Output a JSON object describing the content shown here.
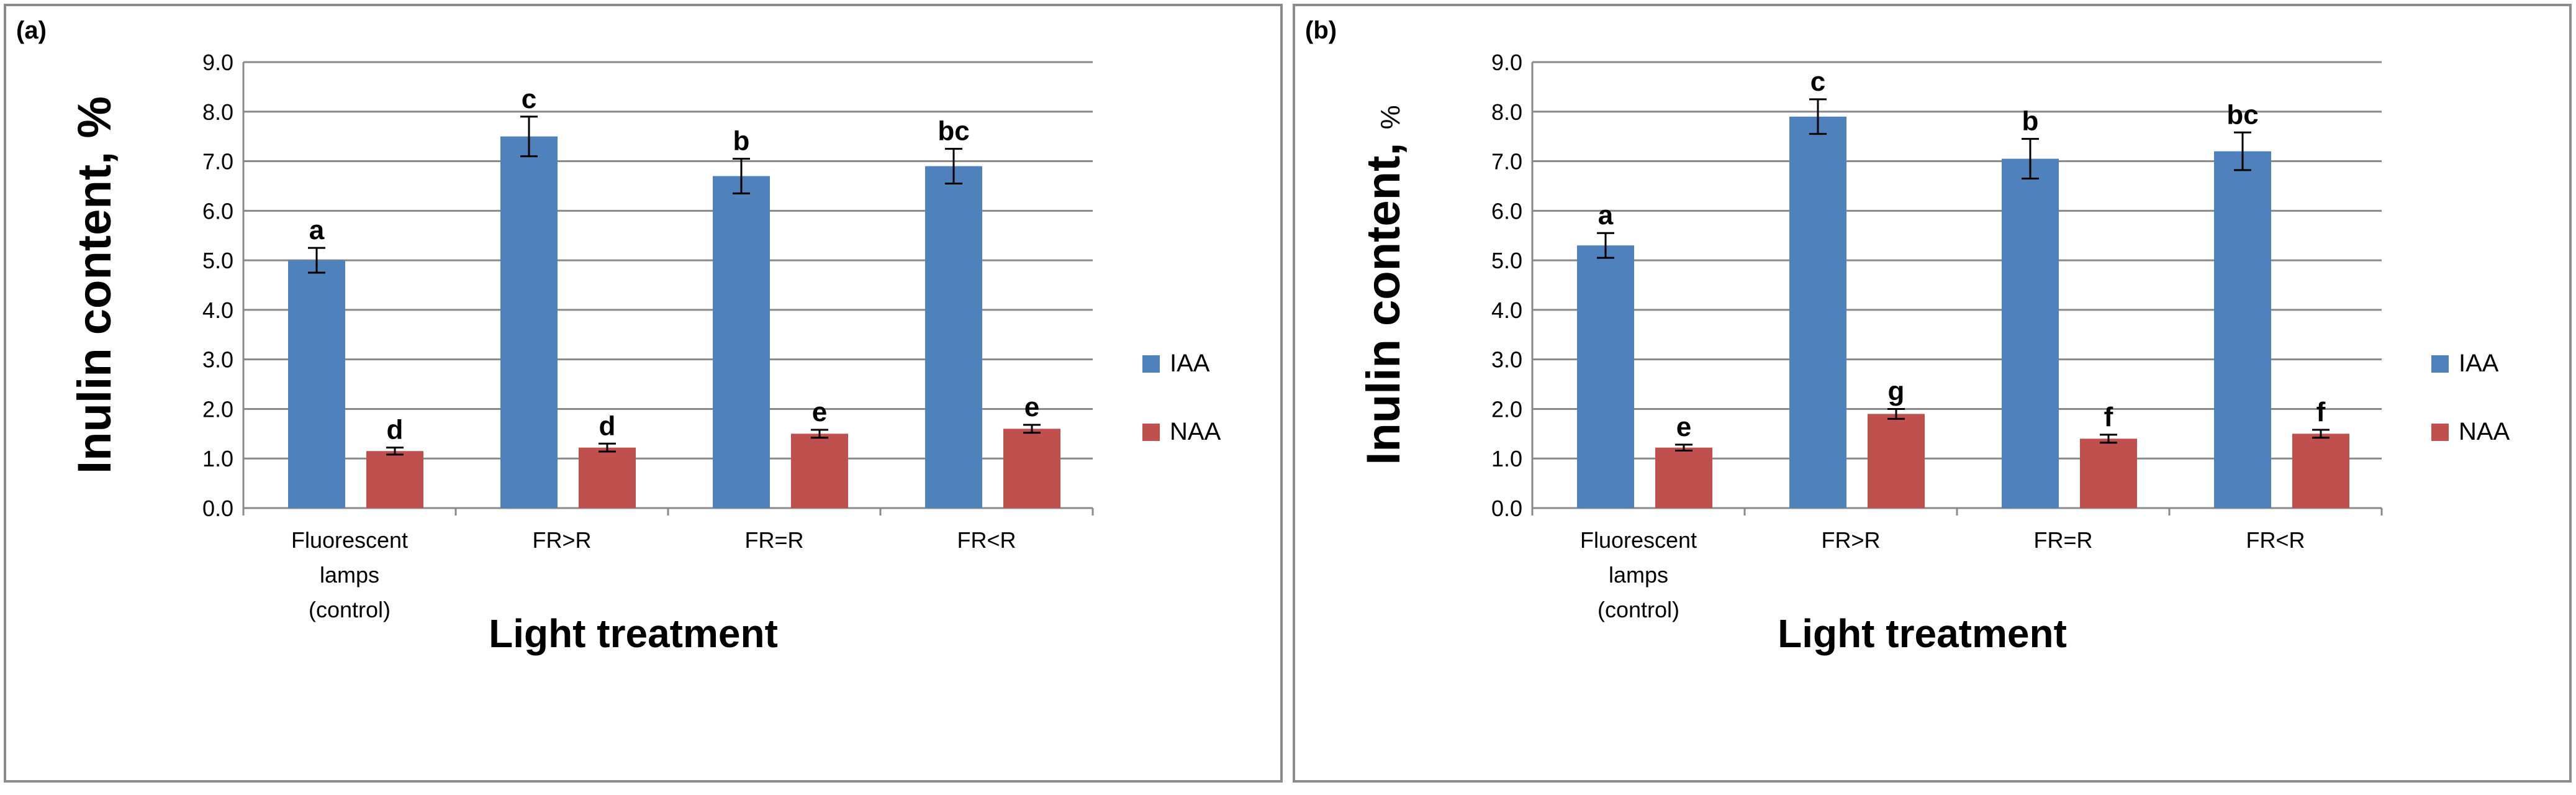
{
  "chart_data": [
    {
      "type": "bar",
      "panel_label": "(a)",
      "categories": [
        [
          "Fluorescent",
          "lamps",
          "(control)"
        ],
        [
          "FR>R"
        ],
        [
          "FR=R"
        ],
        [
          "FR<R"
        ]
      ],
      "series": [
        {
          "name": "IAA",
          "color": "#4F81BD",
          "values": [
            5.0,
            7.5,
            6.7,
            6.9
          ],
          "errors": [
            0.25,
            0.4,
            0.35,
            0.35
          ],
          "letters": [
            "a",
            "c",
            "b",
            "bc"
          ]
        },
        {
          "name": "NAA",
          "color": "#C0504D",
          "values": [
            1.15,
            1.22,
            1.5,
            1.6
          ],
          "errors": [
            0.07,
            0.08,
            0.08,
            0.08
          ],
          "letters": [
            "d",
            "d",
            "e",
            "e"
          ]
        }
      ],
      "xlabel": "Light treatment",
      "ylabel": "Inulin content, %",
      "ylim": [
        0,
        9
      ],
      "yticks": [
        "0.0",
        "1.0",
        "2.0",
        "3.0",
        "4.0",
        "5.0",
        "6.0",
        "7.0",
        "8.0",
        "9.0"
      ],
      "grid": true,
      "legend_position": "right"
    },
    {
      "type": "bar",
      "panel_label": "(b)",
      "categories": [
        [
          "Fluorescent",
          "lamps",
          "(control)"
        ],
        [
          "FR>R"
        ],
        [
          "FR=R"
        ],
        [
          "FR<R"
        ]
      ],
      "series": [
        {
          "name": "IAA",
          "color": "#4F81BD",
          "values": [
            5.3,
            7.9,
            7.05,
            7.2
          ],
          "errors": [
            0.25,
            0.35,
            0.4,
            0.38
          ],
          "letters": [
            "a",
            "c",
            "b",
            "bc"
          ]
        },
        {
          "name": "NAA",
          "color": "#C0504D",
          "values": [
            1.22,
            1.9,
            1.4,
            1.5
          ],
          "errors": [
            0.06,
            0.1,
            0.08,
            0.08
          ],
          "letters": [
            "e",
            "g",
            "f",
            "f"
          ]
        }
      ],
      "xlabel": "Light treatment",
      "ylabel": [
        "Inulin content, ",
        "%"
      ],
      "ylim": [
        0,
        9
      ],
      "yticks": [
        "0.0",
        "1.0",
        "2.0",
        "3.0",
        "4.0",
        "5.0",
        "6.0",
        "7.0",
        "8.0",
        "9.0"
      ],
      "grid": true,
      "legend_position": "right"
    }
  ]
}
